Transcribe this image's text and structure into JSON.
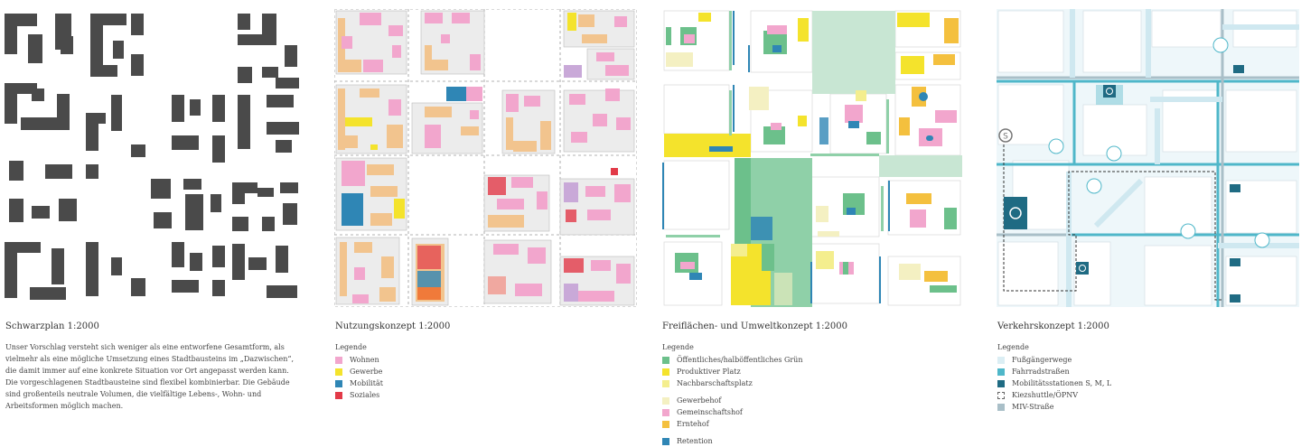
{
  "colors": {
    "building": "#4a4a4a",
    "block": "#ececec",
    "wohnen": "#f2a6cd",
    "gewerbe": "#f4e32c",
    "mobilitaet": "#2f86b5",
    "soziales": "#e23a48",
    "orange": "#f2c48e",
    "gruen": "#6cc08b",
    "platz": "#f4e32c",
    "nachbar": "#f4ee8e",
    "gewerbehof": "#f4f0c2",
    "gemeinschaft": "#f2a6cd",
    "ernte": "#f4c03e",
    "retention": "#2f86b5",
    "fuss": "#dbeef4",
    "fahrrad": "#4fb7c9",
    "station": "#1f6b83",
    "miv": "#a9bfc8"
  },
  "panels": [
    {
      "title": "Schwarzplan 1:2000",
      "description": "Unser Vorschlag versteht sich weniger als eine entworfene Gesamtform, als vielmehr als eine mögliche Umsetzung eines Stadtbausteins im „Dazwischen“, die damit immer auf eine konkrete Situation vor Ort angepasst werden kann. Die vorgeschlagenen Stadtbausteine sind flexibel kombinierbar. Die Gebäude sind großenteils neutrale Volumen, die vielfältige Lebens-, Wohn- und Arbeitsformen möglich machen."
    },
    {
      "title": "Nutzungskonzept 1:2000",
      "legend_title": "Legende",
      "legend": [
        {
          "label": "Wohnen",
          "color": "#f2a6cd"
        },
        {
          "label": "Gewerbe",
          "color": "#f4e32c"
        },
        {
          "label": "Mobilität",
          "color": "#2f86b5"
        },
        {
          "label": "Soziales",
          "color": "#e23a48"
        }
      ]
    },
    {
      "title": "Freiflächen- und Umweltkonzept 1:2000",
      "legend_title": "Legende",
      "legend_groups": [
        [
          {
            "label": "Öffentliches/halböffentliches Grün",
            "color": "#6cc08b"
          },
          {
            "label": "Produktiver Platz",
            "color": "#f4e32c"
          },
          {
            "label": "Nachbarschaftsplatz",
            "color": "#f4ee8e"
          }
        ],
        [
          {
            "label": "Gewerbehof",
            "color": "#f4f0c2"
          },
          {
            "label": "Gemeinschaftshof",
            "color": "#f2a6cd"
          },
          {
            "label": "Erntehof",
            "color": "#f4c03e"
          }
        ],
        [
          {
            "label": "Retention",
            "color": "#2f86b5"
          }
        ]
      ]
    },
    {
      "title": "Verkehrskonzept 1:2000",
      "legend_title": "Legende",
      "legend": [
        {
          "label": "Fußgängerwege",
          "color": "#dbeef4",
          "style": "fill"
        },
        {
          "label": "Fahrradstraßen",
          "color": "#4fb7c9",
          "style": "fill"
        },
        {
          "label": "Mobilitätsstationen S, M, L",
          "color": "#1f6b83",
          "style": "fill"
        },
        {
          "label": "Kiezshuttle/ÖPNV",
          "color": "#666666",
          "style": "dashed"
        },
        {
          "label": "MIV-Straße",
          "color": "#a9bfc8",
          "style": "fill"
        }
      ],
      "map_labels": {
        "sbahn": "S"
      }
    }
  ]
}
